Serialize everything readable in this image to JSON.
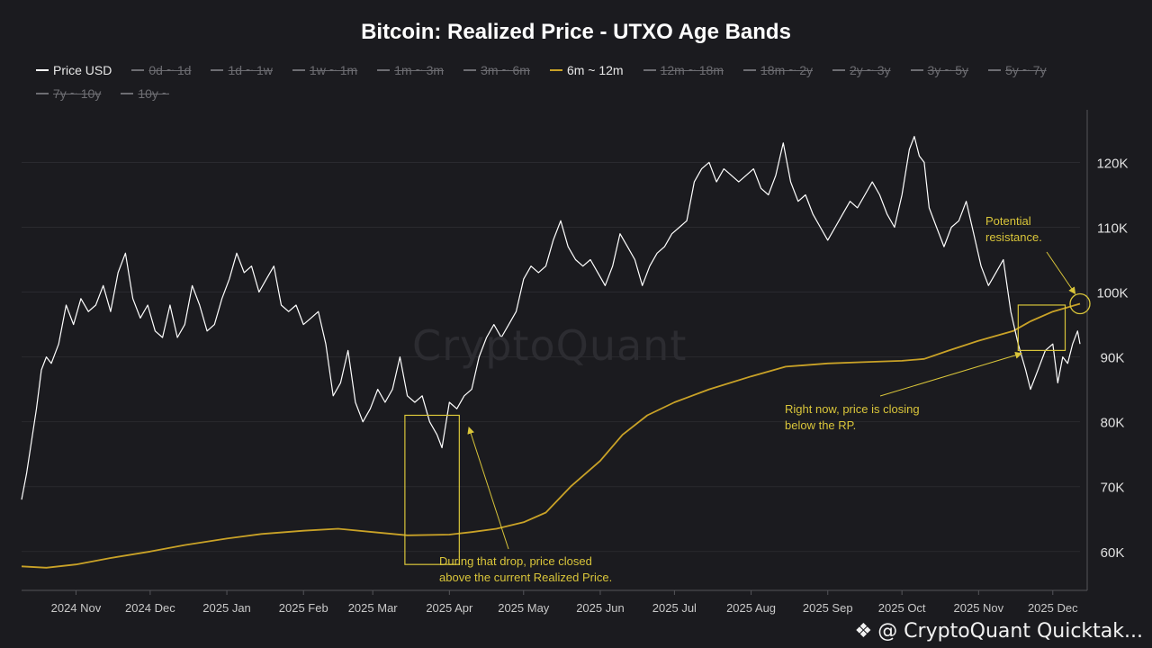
{
  "title": "Bitcoin: Realized Price - UTXO Age Bands",
  "legend": [
    {
      "label": "Price USD",
      "active": true,
      "color": "#ffffff"
    },
    {
      "label": "0d ~ 1d",
      "active": false
    },
    {
      "label": "1d ~ 1w",
      "active": false
    },
    {
      "label": "1w ~ 1m",
      "active": false
    },
    {
      "label": "1m ~ 3m",
      "active": false
    },
    {
      "label": "3m ~ 6m",
      "active": false
    },
    {
      "label": "6m ~ 12m",
      "active": true,
      "color": "#c9a227"
    },
    {
      "label": "12m ~ 18m",
      "active": false
    },
    {
      "label": "18m ~ 2y",
      "active": false
    },
    {
      "label": "2y ~ 3y",
      "active": false
    },
    {
      "label": "3y ~ 5y",
      "active": false
    },
    {
      "label": "5y ~ 7y",
      "active": false
    },
    {
      "label": "7y ~ 10y",
      "active": false
    },
    {
      "label": "10y ~",
      "active": false
    }
  ],
  "watermark": "CryptoQuant",
  "annotations": {
    "drop": [
      "During that drop, price closed",
      "above the current Realized Price."
    ],
    "now": [
      "Right now, price is closing",
      "below the RP."
    ],
    "resistance": [
      "Potential",
      "resistance."
    ]
  },
  "credit": {
    "icon": "binance-square-icon",
    "text": "@ CryptoQuant Quicktak..."
  },
  "chart_data": {
    "type": "line",
    "x_ticks": [
      "2024 Nov",
      "2024 Dec",
      "2025 Jan",
      "2025 Feb",
      "2025 Mar",
      "2025 Apr",
      "2025 May",
      "2025 Jun",
      "2025 Jul",
      "2025 Aug",
      "2025 Sep",
      "2025 Oct",
      "2025 Nov",
      "2025 Dec"
    ],
    "y_ticks": [
      60000,
      70000,
      80000,
      90000,
      100000,
      110000,
      120000
    ],
    "y_tick_labels": [
      "60K",
      "70K",
      "80K",
      "90K",
      "100K",
      "110K",
      "120K"
    ],
    "ylim": [
      54000,
      127000
    ],
    "x_range": [
      "2024-10-10",
      "2025-12-12"
    ],
    "grid": true,
    "y_axis_side": "right",
    "series": [
      {
        "name": "Price USD",
        "color": "#ffffff",
        "points": [
          [
            "2024-10-10",
            68000
          ],
          [
            "2024-10-12",
            72000
          ],
          [
            "2024-10-14",
            77000
          ],
          [
            "2024-10-16",
            82000
          ],
          [
            "2024-10-18",
            88000
          ],
          [
            "2024-10-20",
            90000
          ],
          [
            "2024-10-22",
            89000
          ],
          [
            "2024-10-25",
            92000
          ],
          [
            "2024-10-28",
            98000
          ],
          [
            "2024-10-31",
            95000
          ],
          [
            "2024-11-03",
            99000
          ],
          [
            "2024-11-06",
            97000
          ],
          [
            "2024-11-09",
            98000
          ],
          [
            "2024-11-12",
            101000
          ],
          [
            "2024-11-15",
            97000
          ],
          [
            "2024-11-18",
            103000
          ],
          [
            "2024-11-21",
            106000
          ],
          [
            "2024-11-24",
            99000
          ],
          [
            "2024-11-27",
            96000
          ],
          [
            "2024-11-30",
            98000
          ],
          [
            "2024-12-03",
            94000
          ],
          [
            "2024-12-06",
            93000
          ],
          [
            "2024-12-09",
            98000
          ],
          [
            "2024-12-12",
            93000
          ],
          [
            "2024-12-15",
            95000
          ],
          [
            "2024-12-18",
            101000
          ],
          [
            "2024-12-21",
            98000
          ],
          [
            "2024-12-24",
            94000
          ],
          [
            "2024-12-27",
            95000
          ],
          [
            "2024-12-30",
            99000
          ],
          [
            "2025-01-02",
            102000
          ],
          [
            "2025-01-05",
            106000
          ],
          [
            "2025-01-08",
            103000
          ],
          [
            "2025-01-11",
            104000
          ],
          [
            "2025-01-14",
            100000
          ],
          [
            "2025-01-17",
            102000
          ],
          [
            "2025-01-20",
            104000
          ],
          [
            "2025-01-23",
            98000
          ],
          [
            "2025-01-26",
            97000
          ],
          [
            "2025-01-29",
            98000
          ],
          [
            "2025-02-01",
            95000
          ],
          [
            "2025-02-04",
            96000
          ],
          [
            "2025-02-07",
            97000
          ],
          [
            "2025-02-10",
            92000
          ],
          [
            "2025-02-13",
            84000
          ],
          [
            "2025-02-16",
            86000
          ],
          [
            "2025-02-19",
            91000
          ],
          [
            "2025-02-22",
            83000
          ],
          [
            "2025-02-25",
            80000
          ],
          [
            "2025-02-28",
            82000
          ],
          [
            "2025-03-03",
            85000
          ],
          [
            "2025-03-06",
            83000
          ],
          [
            "2025-03-09",
            85000
          ],
          [
            "2025-03-12",
            90000
          ],
          [
            "2025-03-15",
            84000
          ],
          [
            "2025-03-18",
            83000
          ],
          [
            "2025-03-21",
            84000
          ],
          [
            "2025-03-24",
            80000
          ],
          [
            "2025-03-27",
            78000
          ],
          [
            "2025-03-29",
            76000
          ],
          [
            "2025-04-01",
            83000
          ],
          [
            "2025-04-04",
            82000
          ],
          [
            "2025-04-07",
            84000
          ],
          [
            "2025-04-10",
            85000
          ],
          [
            "2025-04-13",
            90000
          ],
          [
            "2025-04-16",
            93000
          ],
          [
            "2025-04-19",
            95000
          ],
          [
            "2025-04-22",
            93000
          ],
          [
            "2025-04-25",
            95000
          ],
          [
            "2025-04-28",
            97000
          ],
          [
            "2025-05-01",
            102000
          ],
          [
            "2025-05-04",
            104000
          ],
          [
            "2025-05-07",
            103000
          ],
          [
            "2025-05-10",
            104000
          ],
          [
            "2025-05-13",
            108000
          ],
          [
            "2025-05-16",
            111000
          ],
          [
            "2025-05-19",
            107000
          ],
          [
            "2025-05-22",
            105000
          ],
          [
            "2025-05-25",
            104000
          ],
          [
            "2025-05-28",
            105000
          ],
          [
            "2025-05-31",
            103000
          ],
          [
            "2025-06-03",
            101000
          ],
          [
            "2025-06-06",
            104000
          ],
          [
            "2025-06-09",
            109000
          ],
          [
            "2025-06-12",
            107000
          ],
          [
            "2025-06-15",
            105000
          ],
          [
            "2025-06-18",
            101000
          ],
          [
            "2025-06-21",
            104000
          ],
          [
            "2025-06-24",
            106000
          ],
          [
            "2025-06-27",
            107000
          ],
          [
            "2025-06-30",
            109000
          ],
          [
            "2025-07-03",
            110000
          ],
          [
            "2025-07-06",
            111000
          ],
          [
            "2025-07-09",
            117000
          ],
          [
            "2025-07-12",
            119000
          ],
          [
            "2025-07-15",
            120000
          ],
          [
            "2025-07-18",
            117000
          ],
          [
            "2025-07-21",
            119000
          ],
          [
            "2025-07-24",
            118000
          ],
          [
            "2025-07-27",
            117000
          ],
          [
            "2025-07-30",
            118000
          ],
          [
            "2025-08-02",
            119000
          ],
          [
            "2025-08-05",
            116000
          ],
          [
            "2025-08-08",
            115000
          ],
          [
            "2025-08-11",
            118000
          ],
          [
            "2025-08-14",
            123000
          ],
          [
            "2025-08-17",
            117000
          ],
          [
            "2025-08-20",
            114000
          ],
          [
            "2025-08-23",
            115000
          ],
          [
            "2025-08-26",
            112000
          ],
          [
            "2025-08-29",
            110000
          ],
          [
            "2025-09-01",
            108000
          ],
          [
            "2025-09-04",
            110000
          ],
          [
            "2025-09-07",
            112000
          ],
          [
            "2025-09-10",
            114000
          ],
          [
            "2025-09-13",
            113000
          ],
          [
            "2025-09-16",
            115000
          ],
          [
            "2025-09-19",
            117000
          ],
          [
            "2025-09-22",
            115000
          ],
          [
            "2025-09-25",
            112000
          ],
          [
            "2025-09-28",
            110000
          ],
          [
            "2025-10-01",
            115000
          ],
          [
            "2025-10-04",
            122000
          ],
          [
            "2025-10-06",
            124000
          ],
          [
            "2025-10-08",
            121000
          ],
          [
            "2025-10-10",
            120000
          ],
          [
            "2025-10-12",
            113000
          ],
          [
            "2025-10-15",
            110000
          ],
          [
            "2025-10-18",
            107000
          ],
          [
            "2025-10-21",
            110000
          ],
          [
            "2025-10-24",
            111000
          ],
          [
            "2025-10-27",
            114000
          ],
          [
            "2025-10-30",
            109000
          ],
          [
            "2025-11-02",
            104000
          ],
          [
            "2025-11-05",
            101000
          ],
          [
            "2025-11-08",
            103000
          ],
          [
            "2025-11-11",
            105000
          ],
          [
            "2025-11-14",
            97000
          ],
          [
            "2025-11-17",
            92000
          ],
          [
            "2025-11-20",
            88000
          ],
          [
            "2025-11-22",
            85000
          ],
          [
            "2025-11-25",
            88000
          ],
          [
            "2025-11-28",
            91000
          ],
          [
            "2025-12-01",
            92000
          ],
          [
            "2025-12-03",
            86000
          ],
          [
            "2025-12-05",
            90000
          ],
          [
            "2025-12-07",
            89000
          ],
          [
            "2025-12-09",
            92000
          ],
          [
            "2025-12-11",
            94000
          ],
          [
            "2025-12-12",
            92000
          ]
        ]
      },
      {
        "name": "6m ~ 12m",
        "color": "#c9a227",
        "points": [
          [
            "2024-10-10",
            57700
          ],
          [
            "2024-10-20",
            57500
          ],
          [
            "2024-11-01",
            58000
          ],
          [
            "2024-11-15",
            59000
          ],
          [
            "2024-12-01",
            60000
          ],
          [
            "2024-12-15",
            61000
          ],
          [
            "2025-01-01",
            62000
          ],
          [
            "2025-01-15",
            62700
          ],
          [
            "2025-02-01",
            63200
          ],
          [
            "2025-02-15",
            63500
          ],
          [
            "2025-03-01",
            63000
          ],
          [
            "2025-03-15",
            62500
          ],
          [
            "2025-04-01",
            62600
          ],
          [
            "2025-04-10",
            63000
          ],
          [
            "2025-04-20",
            63500
          ],
          [
            "2025-05-01",
            64500
          ],
          [
            "2025-05-10",
            66000
          ],
          [
            "2025-05-20",
            70000
          ],
          [
            "2025-06-01",
            74000
          ],
          [
            "2025-06-10",
            78000
          ],
          [
            "2025-06-20",
            81000
          ],
          [
            "2025-07-01",
            83000
          ],
          [
            "2025-07-15",
            85000
          ],
          [
            "2025-08-01",
            87000
          ],
          [
            "2025-08-15",
            88500
          ],
          [
            "2025-09-01",
            89000
          ],
          [
            "2025-09-15",
            89200
          ],
          [
            "2025-10-01",
            89400
          ],
          [
            "2025-10-10",
            89700
          ],
          [
            "2025-10-20",
            91000
          ],
          [
            "2025-11-01",
            92500
          ],
          [
            "2025-11-15",
            94000
          ],
          [
            "2025-11-22",
            95500
          ],
          [
            "2025-12-01",
            97000
          ],
          [
            "2025-12-12",
            98200
          ]
        ]
      }
    ],
    "highlight_boxes": [
      {
        "x": [
          "2025-03-14",
          "2025-04-05"
        ],
        "y": [
          58000,
          81000
        ]
      },
      {
        "x": [
          "2025-11-17",
          "2025-12-06"
        ],
        "y": [
          91000,
          98000
        ]
      }
    ],
    "highlight_circle": {
      "x": "2025-12-12",
      "y": 98200
    }
  }
}
